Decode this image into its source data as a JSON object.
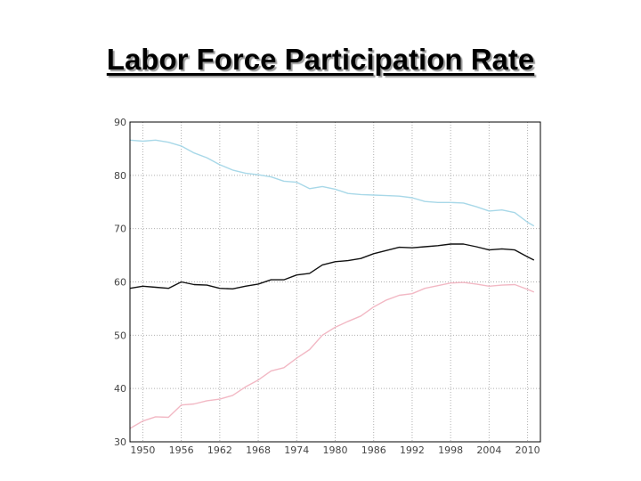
{
  "slide": {
    "title": "Labor Force Participation Rate"
  },
  "chart_data": {
    "type": "line",
    "title": "",
    "xlabel": "",
    "ylabel": "",
    "xlim": [
      1948,
      2012
    ],
    "ylim": [
      30,
      90
    ],
    "x_ticks": [
      1950,
      1956,
      1962,
      1968,
      1974,
      1980,
      1986,
      1992,
      1998,
      2004,
      2010
    ],
    "y_ticks": [
      30,
      40,
      50,
      60,
      70,
      80,
      90
    ],
    "grid": true,
    "legend": "none",
    "series": [
      {
        "color": "#a8d8e8",
        "x": [
          1948,
          1950,
          1952,
          1954,
          1956,
          1958,
          1960,
          1962,
          1964,
          1966,
          1968,
          1970,
          1972,
          1974,
          1976,
          1978,
          1980,
          1982,
          1984,
          1986,
          1988,
          1990,
          1992,
          1994,
          1996,
          1998,
          2000,
          2002,
          2004,
          2006,
          2008,
          2010,
          2011
        ],
        "y": [
          86.6,
          86.4,
          86.6,
          86.2,
          85.5,
          84.2,
          83.3,
          82.0,
          81.0,
          80.4,
          80.1,
          79.7,
          78.9,
          78.7,
          77.5,
          77.9,
          77.4,
          76.6,
          76.4,
          76.3,
          76.2,
          76.1,
          75.8,
          75.1,
          74.9,
          74.9,
          74.8,
          74.1,
          73.3,
          73.5,
          73.0,
          71.2,
          70.5
        ]
      },
      {
        "color": "#111111",
        "x": [
          1948,
          1950,
          1952,
          1954,
          1956,
          1958,
          1960,
          1962,
          1964,
          1966,
          1968,
          1970,
          1972,
          1974,
          1976,
          1978,
          1980,
          1982,
          1984,
          1986,
          1988,
          1990,
          1992,
          1994,
          1996,
          1998,
          2000,
          2002,
          2004,
          2006,
          2008,
          2010,
          2011
        ],
        "y": [
          58.8,
          59.2,
          59.0,
          58.8,
          60.0,
          59.5,
          59.4,
          58.8,
          58.7,
          59.2,
          59.6,
          60.4,
          60.4,
          61.3,
          61.6,
          63.2,
          63.8,
          64.0,
          64.4,
          65.3,
          65.9,
          66.5,
          66.4,
          66.6,
          66.8,
          67.1,
          67.1,
          66.6,
          66.0,
          66.2,
          66.0,
          64.7,
          64.1
        ]
      },
      {
        "color": "#f2b8c4",
        "x": [
          1948,
          1950,
          1952,
          1954,
          1956,
          1958,
          1960,
          1962,
          1964,
          1966,
          1968,
          1970,
          1972,
          1974,
          1976,
          1978,
          1980,
          1982,
          1984,
          1986,
          1988,
          1990,
          1992,
          1994,
          1996,
          1998,
          2000,
          2002,
          2004,
          2006,
          2008,
          2010,
          2011
        ],
        "y": [
          32.5,
          33.9,
          34.7,
          34.6,
          36.9,
          37.1,
          37.7,
          38.0,
          38.7,
          40.3,
          41.6,
          43.3,
          43.9,
          45.7,
          47.3,
          50.0,
          51.5,
          52.6,
          53.6,
          55.3,
          56.6,
          57.5,
          57.8,
          58.8,
          59.3,
          59.8,
          59.9,
          59.6,
          59.2,
          59.4,
          59.5,
          58.6,
          58.1
        ]
      }
    ]
  }
}
